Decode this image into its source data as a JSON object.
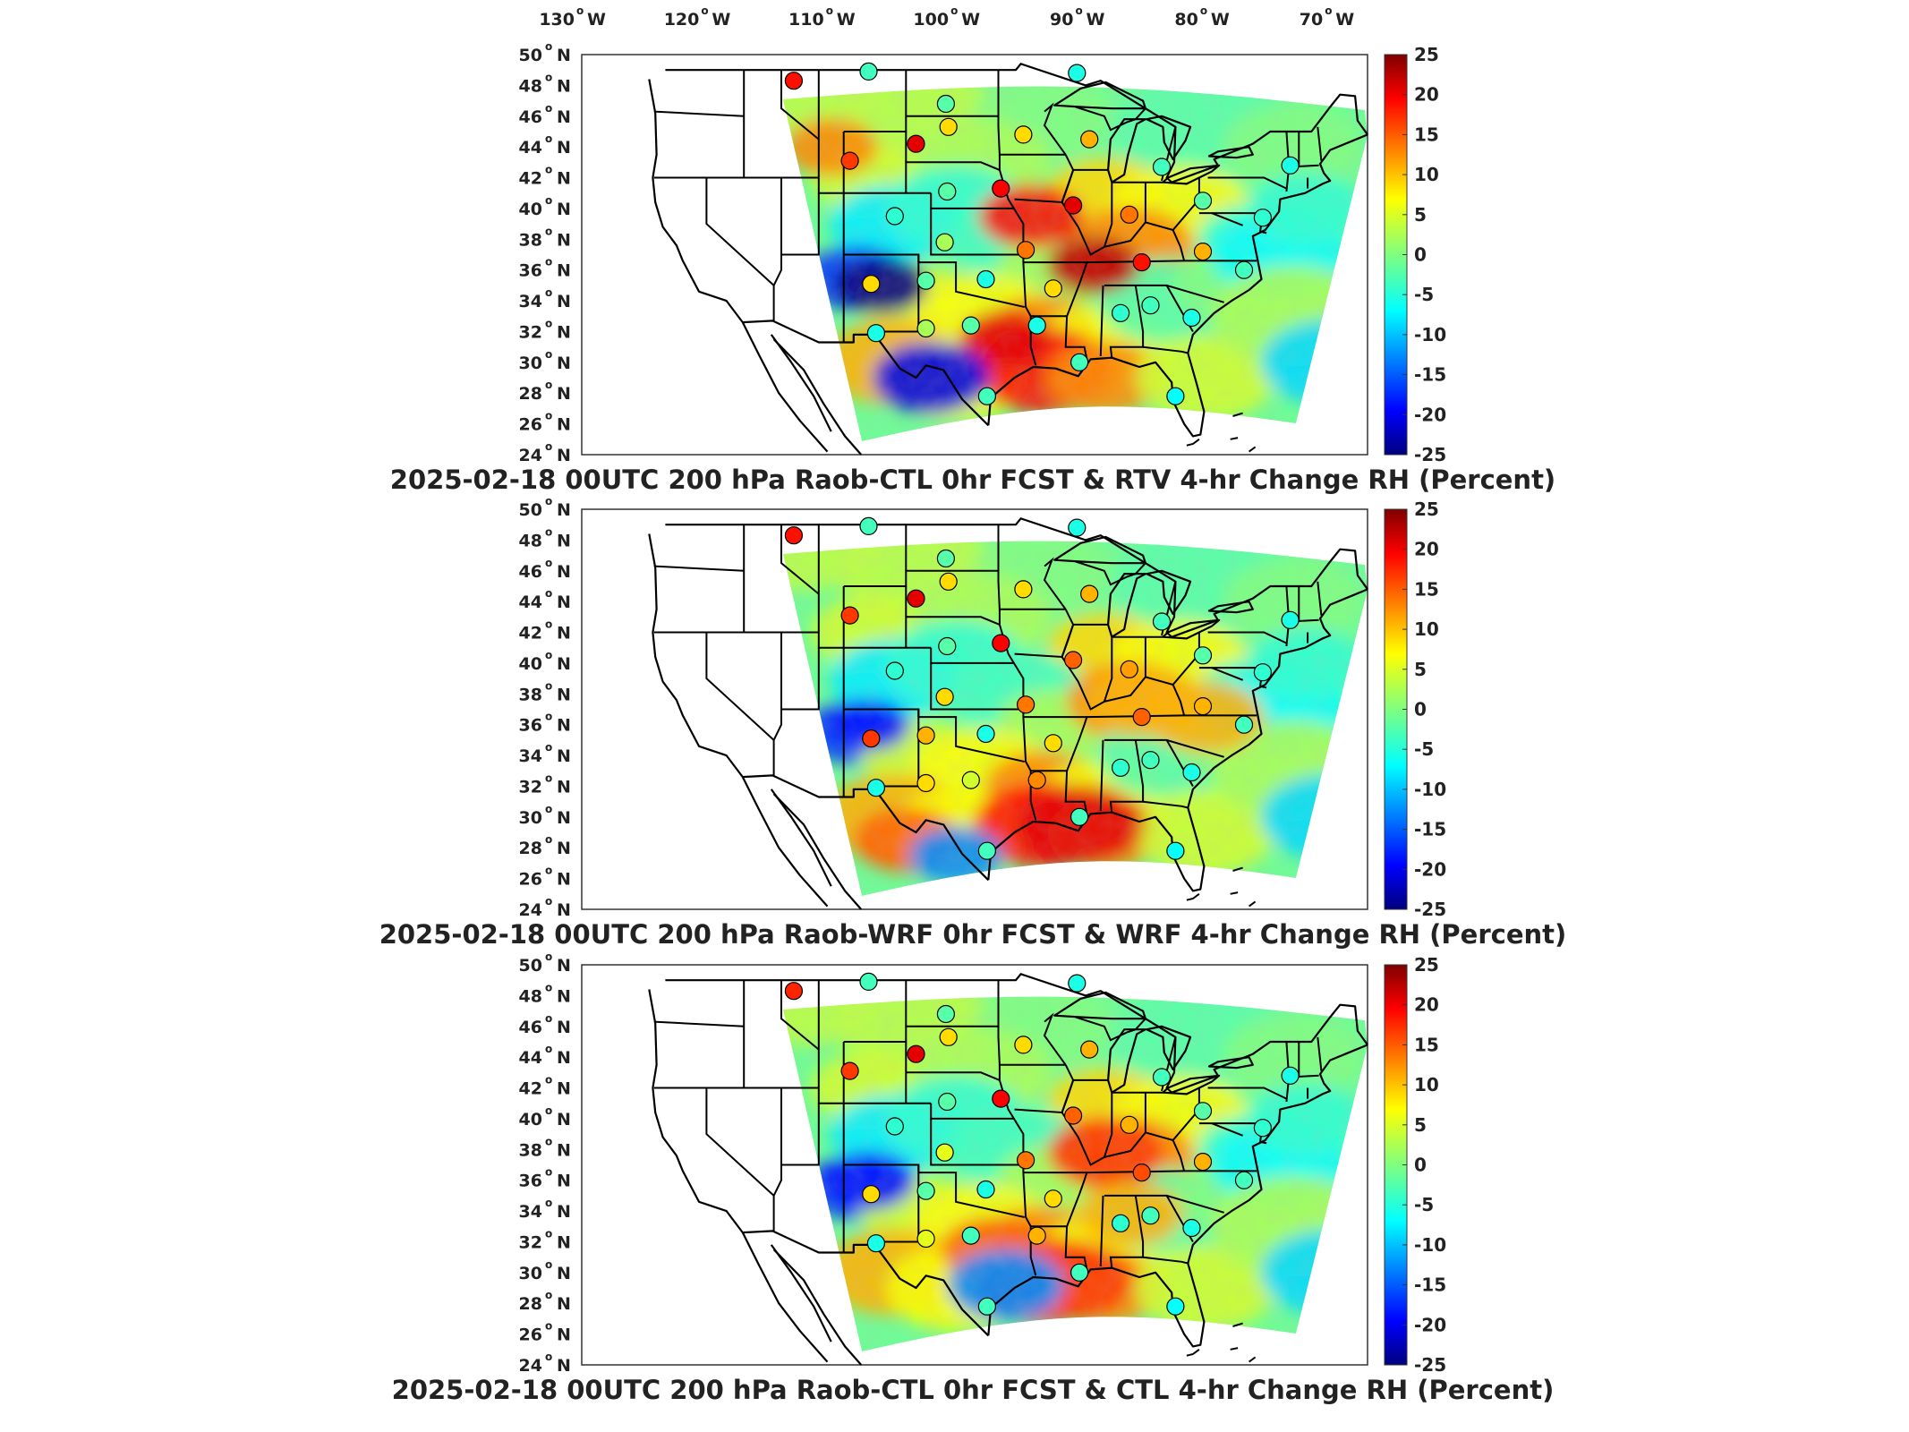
{
  "lon_labels": [
    {
      "value": "130",
      "hemi": "W"
    },
    {
      "value": "120",
      "hemi": "W"
    },
    {
      "value": "110",
      "hemi": "W"
    },
    {
      "value": "100",
      "hemi": "W"
    },
    {
      "value": "90",
      "hemi": "W"
    },
    {
      "value": "80",
      "hemi": "W"
    },
    {
      "value": "70",
      "hemi": "W"
    }
  ],
  "lat_labels": [
    {
      "value": "50",
      "hemi": "N"
    },
    {
      "value": "48",
      "hemi": "N"
    },
    {
      "value": "46",
      "hemi": "N"
    },
    {
      "value": "44",
      "hemi": "N"
    },
    {
      "value": "42",
      "hemi": "N"
    },
    {
      "value": "40",
      "hemi": "N"
    },
    {
      "value": "38",
      "hemi": "N"
    },
    {
      "value": "36",
      "hemi": "N"
    },
    {
      "value": "34",
      "hemi": "N"
    },
    {
      "value": "32",
      "hemi": "N"
    },
    {
      "value": "30",
      "hemi": "N"
    },
    {
      "value": "28",
      "hemi": "N"
    },
    {
      "value": "26",
      "hemi": "N"
    },
    {
      "value": "24",
      "hemi": "N"
    }
  ],
  "colorbar": {
    "ticks": [
      "25",
      "20",
      "15",
      "10",
      "5",
      "0",
      "-5",
      "-10",
      "-15",
      "-20",
      "-25"
    ],
    "colors": [
      "#00007f",
      "#0000ff",
      "#007fff",
      "#00ffff",
      "#7fff7f",
      "#ffff00",
      "#ff7f00",
      "#ff0000",
      "#7f0000"
    ]
  },
  "panels": [
    {
      "title": "2025-02-18 00UTC 200 hPa Raob-CTL 0hr FCST & RTV 4-hr Change RH (Percent)"
    },
    {
      "title": "2025-02-18 00UTC 200 hPa Raob-WRF 0hr FCST & WRF 4-hr Change RH (Percent)"
    },
    {
      "title": "2025-02-18 00UTC 200 hPa Raob-CTL 0hr FCST & CTL 4-hr Change RH (Percent)"
    }
  ],
  "stations": [
    {
      "lon": -113,
      "lat": 48.3,
      "v": [
        18,
        18,
        17
      ]
    },
    {
      "lon": -107,
      "lat": 48.9,
      "v": [
        -3,
        -3,
        -3
      ]
    },
    {
      "lon": -100.8,
      "lat": 46.8,
      "v": [
        -2,
        -2,
        -2
      ]
    },
    {
      "lon": -90.3,
      "lat": 48.8,
      "v": [
        -5,
        -5,
        -5
      ]
    },
    {
      "lon": -108.5,
      "lat": 43.1,
      "v": [
        16,
        16,
        16
      ]
    },
    {
      "lon": -103.2,
      "lat": 44.2,
      "v": [
        20,
        20,
        20
      ]
    },
    {
      "lon": -100.6,
      "lat": 45.3,
      "v": [
        8,
        8,
        8
      ]
    },
    {
      "lon": -94.6,
      "lat": 44.8,
      "v": [
        8,
        8,
        8
      ]
    },
    {
      "lon": -89.3,
      "lat": 44.5,
      "v": [
        10,
        10,
        10
      ]
    },
    {
      "lon": -83.5,
      "lat": 42.7,
      "v": [
        -3,
        -3,
        -3
      ]
    },
    {
      "lon": -73.2,
      "lat": 42.8,
      "v": [
        -5,
        -5,
        -5
      ]
    },
    {
      "lon": -100.7,
      "lat": 41.1,
      "v": [
        -2,
        -2,
        -2
      ]
    },
    {
      "lon": -96.4,
      "lat": 41.3,
      "v": [
        19,
        19,
        19
      ]
    },
    {
      "lon": -90.6,
      "lat": 40.2,
      "v": [
        20,
        14,
        14
      ]
    },
    {
      "lon": -86.1,
      "lat": 39.6,
      "v": [
        13,
        11,
        10
      ]
    },
    {
      "lon": -80.2,
      "lat": 40.5,
      "v": [
        -2,
        -2,
        -2
      ]
    },
    {
      "lon": -75.4,
      "lat": 39.4,
      "v": [
        -4,
        -4,
        -4
      ]
    },
    {
      "lon": -104.9,
      "lat": 39.5,
      "v": [
        -4,
        -4,
        -4
      ]
    },
    {
      "lon": -100.9,
      "lat": 37.8,
      "v": [
        2,
        8,
        5
      ]
    },
    {
      "lon": -94.4,
      "lat": 37.3,
      "v": [
        13,
        13,
        13
      ]
    },
    {
      "lon": -85.1,
      "lat": 36.5,
      "v": [
        18,
        14,
        15
      ]
    },
    {
      "lon": -80.2,
      "lat": 37.2,
      "v": [
        10,
        10,
        10
      ]
    },
    {
      "lon": -76.9,
      "lat": 36.0,
      "v": [
        -3,
        -3,
        -3
      ]
    },
    {
      "lon": -106.8,
      "lat": 35.1,
      "v": [
        8,
        16,
        8
      ]
    },
    {
      "lon": -102.4,
      "lat": 35.3,
      "v": [
        -2,
        10,
        -2
      ]
    },
    {
      "lon": -97.6,
      "lat": 35.4,
      "v": [
        -5,
        -5,
        -5
      ]
    },
    {
      "lon": -92.2,
      "lat": 34.8,
      "v": [
        8,
        8,
        8
      ]
    },
    {
      "lon": -86.8,
      "lat": 33.2,
      "v": [
        -4,
        -4,
        -4
      ]
    },
    {
      "lon": -84.4,
      "lat": 33.7,
      "v": [
        -3,
        -3,
        -3
      ]
    },
    {
      "lon": -81.1,
      "lat": 32.9,
      "v": [
        -5,
        -5,
        -5
      ]
    },
    {
      "lon": -106.4,
      "lat": 31.9,
      "v": [
        -5,
        -5,
        -5
      ]
    },
    {
      "lon": -102.4,
      "lat": 32.2,
      "v": [
        2,
        8,
        5
      ]
    },
    {
      "lon": -98.8,
      "lat": 32.4,
      "v": [
        -2,
        4,
        -3
      ]
    },
    {
      "lon": -93.5,
      "lat": 32.4,
      "v": [
        -5,
        12,
        10
      ]
    },
    {
      "lon": -90.1,
      "lat": 30.0,
      "v": [
        -3,
        -3,
        -3
      ]
    },
    {
      "lon": -97.5,
      "lat": 27.8,
      "v": [
        -3,
        -3,
        -3
      ]
    },
    {
      "lon": -82.4,
      "lat": 27.8,
      "v": [
        -6,
        -6,
        -6
      ]
    }
  ]
}
